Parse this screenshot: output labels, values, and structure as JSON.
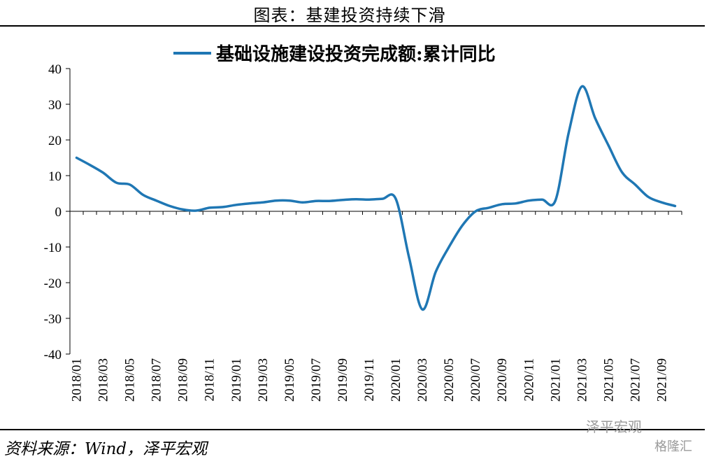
{
  "figure_title": "图表：基建投资持续下滑",
  "source": "资料来源：Wind，泽平宏观",
  "watermark": "泽平宏观",
  "watermark_logo": "格隆汇",
  "chart_data": {
    "type": "line",
    "title": "",
    "xlabel": "",
    "ylabel": "",
    "ylim": [
      -40,
      40
    ],
    "yticks": [
      40,
      30,
      20,
      10,
      0,
      -10,
      -20,
      -30,
      -40
    ],
    "legend": "top-center",
    "grid": false,
    "series_color": "#1f77b4",
    "x_tick_labels": [
      "2018/01",
      "2018/03",
      "2018/05",
      "2018/07",
      "2018/09",
      "2018/11",
      "2019/01",
      "2019/03",
      "2019/05",
      "2019/07",
      "2019/09",
      "2019/11",
      "2020/01",
      "2020/03",
      "2020/05",
      "2020/07",
      "2020/09",
      "2020/11",
      "2021/01",
      "2021/03",
      "2021/05",
      "2021/07",
      "2021/09"
    ],
    "x": [
      "2018/01",
      "2018/02",
      "2018/03",
      "2018/04",
      "2018/05",
      "2018/06",
      "2018/07",
      "2018/08",
      "2018/09",
      "2018/10",
      "2018/11",
      "2018/12",
      "2019/01",
      "2019/02",
      "2019/03",
      "2019/04",
      "2019/05",
      "2019/06",
      "2019/07",
      "2019/08",
      "2019/09",
      "2019/10",
      "2019/11",
      "2019/12",
      "2020/01",
      "2020/02",
      "2020/03",
      "2020/04",
      "2020/05",
      "2020/06",
      "2020/07",
      "2020/08",
      "2020/09",
      "2020/10",
      "2020/11",
      "2020/12",
      "2021/01",
      "2021/02",
      "2021/03",
      "2021/04",
      "2021/05",
      "2021/06",
      "2021/07",
      "2021/08",
      "2021/09",
      "2021/10"
    ],
    "series": [
      {
        "name": "基础设施建设投资完成额:累计同比",
        "values": [
          15.0,
          13.0,
          10.8,
          8.0,
          7.5,
          4.6,
          3.0,
          1.5,
          0.5,
          0.2,
          1.0,
          1.2,
          1.8,
          2.2,
          2.5,
          3.0,
          3.0,
          2.5,
          2.9,
          2.9,
          3.2,
          3.4,
          3.3,
          3.5,
          3.5,
          -13.0,
          -27.5,
          -17.0,
          -10.0,
          -4.0,
          0.0,
          1.0,
          2.0,
          2.2,
          3.0,
          3.3,
          3.0,
          22.0,
          35.0,
          26.0,
          18.4,
          11.0,
          7.5,
          4.0,
          2.5,
          1.5
        ]
      }
    ]
  }
}
